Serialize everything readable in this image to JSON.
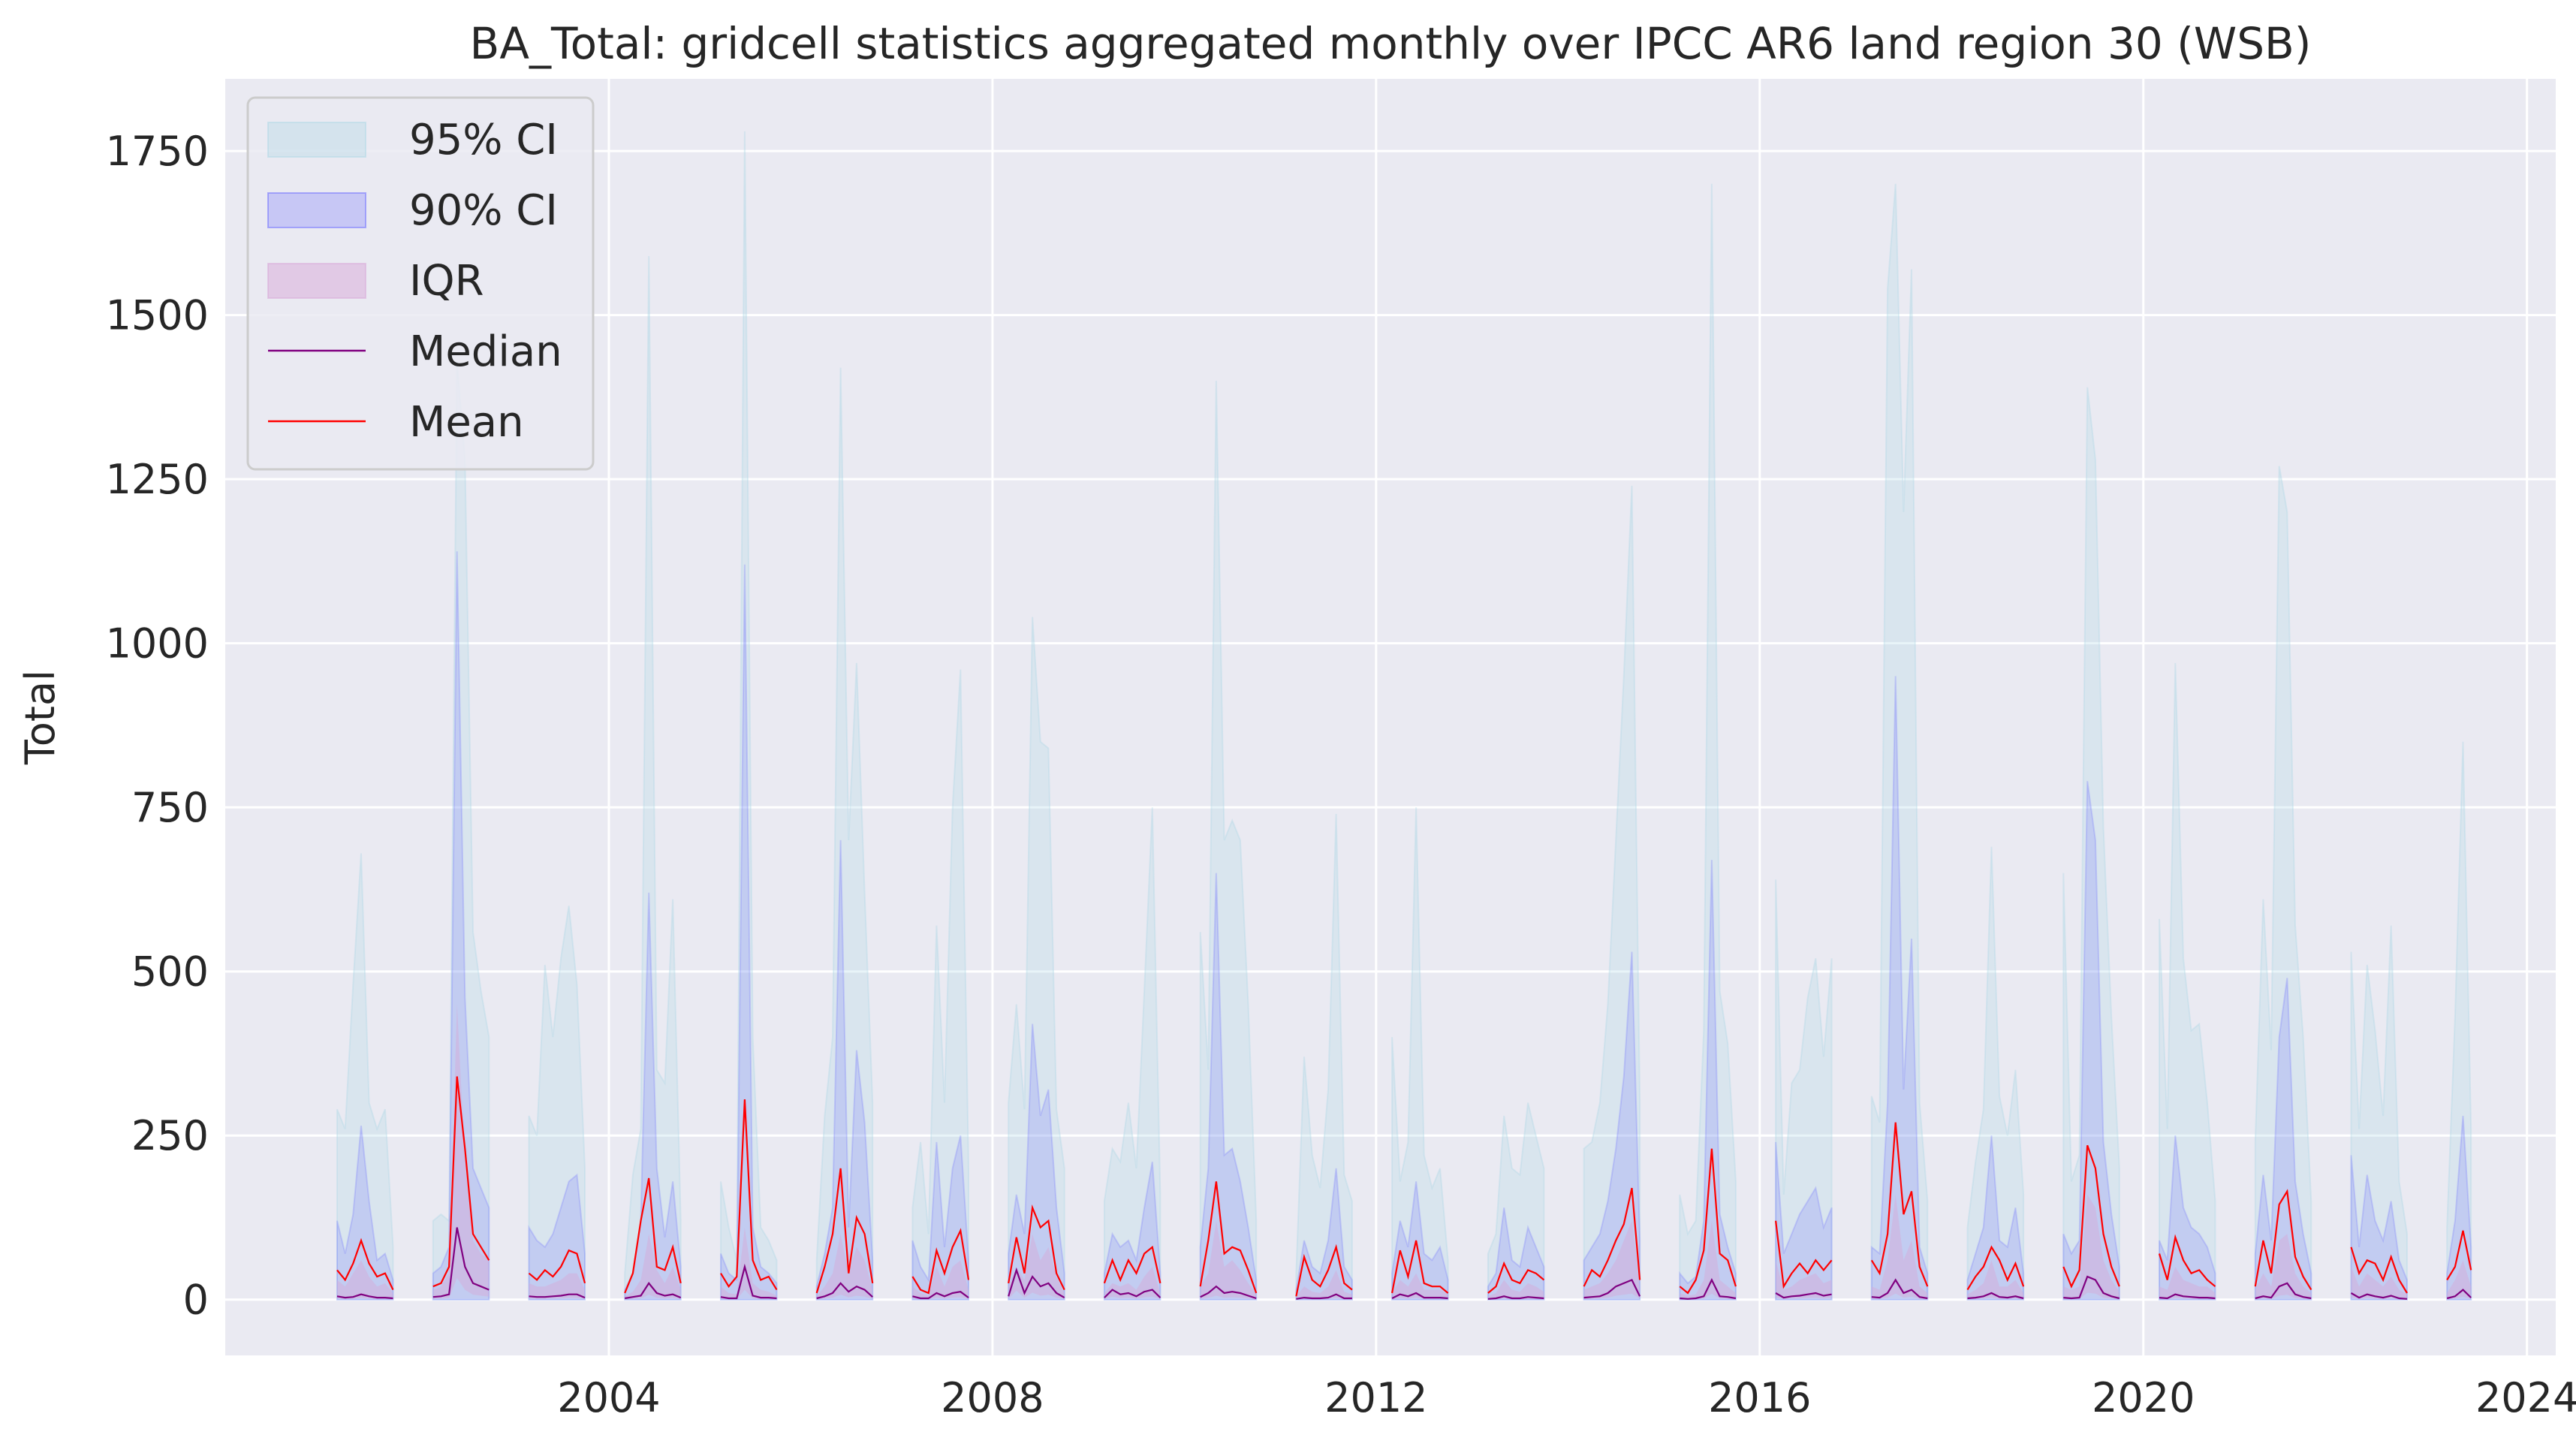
{
  "chart_data": {
    "type": "area",
    "title": "BA_Total: gridcell statistics aggregated monthly over IPCC AR6 land region 30 (WSB)",
    "xlabel": "",
    "ylabel": "Total",
    "xlim": [
      2000.0,
      2024.3
    ],
    "ylim": [
      -85,
      1860
    ],
    "xticks": [
      2004,
      2008,
      2012,
      2016,
      2020,
      2024
    ],
    "xtick_labels": [
      "2004",
      "2008",
      "2012",
      "2016",
      "2020",
      "2024"
    ],
    "yticks": [
      0,
      250,
      500,
      750,
      1000,
      1250,
      1500,
      1750
    ],
    "ytick_labels": [
      "0",
      "250",
      "500",
      "750",
      "1000",
      "1250",
      "1500",
      "1750"
    ],
    "grid": true,
    "legend_position": "upper-left",
    "legend": [
      "95% CI",
      "90% CI",
      "IQR",
      "Median",
      "Mean"
    ],
    "colors": {
      "background": "#eaeaf2",
      "grid": "#ffffff",
      "ci95": "#add8e6",
      "ci90": "#6a6aff",
      "iqr": "#d8a8d8",
      "median": "#800080",
      "mean": "#ff0000"
    },
    "season_start_month": 3,
    "series": [
      {
        "year": 2001,
        "ci95": [
          290,
          260,
          480,
          680,
          300,
          260,
          290,
          80
        ],
        "ci90": [
          120,
          70,
          130,
          265,
          150,
          60,
          70,
          30
        ],
        "iqr_hi": [
          30,
          20,
          40,
          60,
          35,
          20,
          25,
          10
        ],
        "median": [
          5,
          3,
          4,
          8,
          5,
          3,
          3,
          2
        ],
        "mean": [
          45,
          30,
          55,
          90,
          55,
          35,
          40,
          15
        ]
      },
      {
        "year": 2002,
        "ci95": [
          120,
          130,
          120,
          1430,
          1280,
          560,
          470,
          400
        ],
        "ci90": [
          40,
          50,
          80,
          1140,
          460,
          200,
          170,
          140
        ],
        "iqr_hi": [
          15,
          20,
          40,
          450,
          210,
          90,
          70,
          60
        ],
        "median": [
          4,
          5,
          8,
          110,
          50,
          25,
          20,
          15
        ],
        "mean": [
          20,
          25,
          50,
          340,
          230,
          100,
          80,
          60
        ]
      },
      {
        "year": 2003,
        "ci95": [
          280,
          250,
          510,
          400,
          520,
          600,
          480,
          200
        ],
        "ci90": [
          110,
          90,
          80,
          100,
          140,
          180,
          190,
          70
        ],
        "iqr_hi": [
          25,
          20,
          20,
          25,
          30,
          40,
          40,
          15
        ],
        "median": [
          5,
          4,
          4,
          5,
          6,
          8,
          8,
          3
        ],
        "mean": [
          40,
          30,
          45,
          35,
          50,
          75,
          70,
          25
        ]
      },
      {
        "year": 2004,
        "ci95": [
          40,
          190,
          260,
          1590,
          350,
          330,
          610,
          120
        ],
        "ci90": [
          15,
          40,
          120,
          620,
          200,
          95,
          180,
          50
        ],
        "iqr_hi": [
          5,
          12,
          30,
          100,
          45,
          25,
          50,
          15
        ],
        "median": [
          2,
          4,
          6,
          25,
          10,
          6,
          8,
          3
        ],
        "mean": [
          10,
          40,
          120,
          185,
          50,
          45,
          80,
          25
        ]
      },
      {
        "year": 2005,
        "ci95": [
          180,
          110,
          60,
          1780,
          400,
          110,
          90,
          60
        ],
        "ci90": [
          70,
          40,
          30,
          1120,
          110,
          50,
          40,
          25
        ],
        "iqr_hi": [
          20,
          10,
          8,
          110,
          25,
          15,
          12,
          6
        ],
        "median": [
          4,
          2,
          2,
          50,
          6,
          3,
          3,
          2
        ],
        "mean": [
          40,
          20,
          35,
          305,
          60,
          30,
          35,
          15
        ]
      },
      {
        "year": 2006,
        "ci95": [
          60,
          280,
          400,
          1420,
          700,
          970,
          620,
          300
        ],
        "ci90": [
          20,
          70,
          140,
          700,
          110,
          380,
          270,
          60
        ],
        "iqr_hi": [
          5,
          20,
          40,
          100,
          40,
          80,
          60,
          15
        ],
        "median": [
          2,
          5,
          10,
          25,
          12,
          20,
          15,
          4
        ],
        "mean": [
          10,
          50,
          100,
          200,
          40,
          125,
          100,
          25
        ]
      },
      {
        "year": 2007,
        "ci95": [
          140,
          240,
          100,
          570,
          300,
          750,
          960,
          200
        ],
        "ci90": [
          90,
          50,
          30,
          240,
          80,
          200,
          250,
          60
        ],
        "iqr_hi": [
          20,
          10,
          6,
          50,
          20,
          50,
          60,
          15
        ],
        "median": [
          5,
          2,
          2,
          10,
          5,
          10,
          12,
          3
        ],
        "mean": [
          35,
          15,
          10,
          75,
          40,
          80,
          105,
          30
        ]
      },
      {
        "year": 2008,
        "ci95": [
          300,
          450,
          290,
          1040,
          850,
          840,
          290,
          200
        ],
        "ci90": [
          70,
          160,
          100,
          420,
          280,
          320,
          140,
          40
        ],
        "iqr_hi": [
          20,
          50,
          30,
          100,
          60,
          80,
          35,
          10
        ],
        "median": [
          5,
          45,
          10,
          35,
          20,
          25,
          10,
          3
        ],
        "mean": [
          25,
          95,
          40,
          140,
          110,
          120,
          40,
          15
        ]
      },
      {
        "year": 2009,
        "ci95": [
          150,
          230,
          210,
          300,
          200,
          470,
          750,
          160
        ],
        "ci90": [
          40,
          100,
          80,
          90,
          60,
          140,
          210,
          40
        ],
        "iqr_hi": [
          10,
          25,
          20,
          25,
          15,
          35,
          50,
          10
        ],
        "median": [
          3,
          15,
          8,
          10,
          5,
          12,
          15,
          3
        ],
        "mean": [
          25,
          60,
          30,
          60,
          40,
          70,
          80,
          25
        ]
      },
      {
        "year": 2010,
        "ci95": [
          560,
          350,
          1400,
          700,
          730,
          700,
          450,
          120
        ],
        "ci90": [
          80,
          200,
          650,
          220,
          230,
          180,
          110,
          30
        ],
        "iqr_hi": [
          20,
          40,
          120,
          50,
          60,
          45,
          25,
          8
        ],
        "median": [
          4,
          10,
          20,
          10,
          12,
          10,
          6,
          2
        ],
        "mean": [
          20,
          90,
          180,
          70,
          80,
          75,
          45,
          10
        ]
      },
      {
        "year": 2011,
        "ci95": [
          40,
          370,
          220,
          170,
          320,
          740,
          190,
          150
        ],
        "ci90": [
          15,
          90,
          50,
          40,
          90,
          200,
          50,
          30
        ],
        "iqr_hi": [
          5,
          20,
          12,
          10,
          20,
          45,
          12,
          8
        ],
        "median": [
          1,
          3,
          2,
          2,
          3,
          8,
          2,
          2
        ],
        "mean": [
          5,
          65,
          30,
          20,
          45,
          80,
          25,
          15
        ]
      },
      {
        "year": 2012,
        "ci95": [
          400,
          180,
          240,
          750,
          220,
          170,
          200,
          60
        ],
        "ci90": [
          40,
          120,
          80,
          180,
          70,
          60,
          80,
          30
        ],
        "iqr_hi": [
          10,
          30,
          20,
          40,
          15,
          15,
          15,
          8
        ],
        "median": [
          2,
          8,
          5,
          10,
          3,
          3,
          3,
          2
        ],
        "mean": [
          10,
          75,
          35,
          90,
          25,
          20,
          20,
          10
        ]
      },
      {
        "year": 2013,
        "ci95": [
          70,
          100,
          280,
          200,
          190,
          300,
          250,
          200
        ],
        "ci90": [
          20,
          40,
          140,
          60,
          50,
          110,
          80,
          50
        ],
        "iqr_hi": [
          5,
          10,
          30,
          15,
          12,
          25,
          20,
          12
        ],
        "median": [
          1,
          2,
          5,
          2,
          2,
          4,
          3,
          2
        ],
        "mean": [
          10,
          20,
          55,
          30,
          25,
          45,
          40,
          30
        ]
      },
      {
        "year": 2014,
        "ci95": [
          230,
          240,
          300,
          450,
          700,
          950,
          1240,
          300
        ],
        "ci90": [
          60,
          80,
          100,
          150,
          230,
          340,
          530,
          90
        ],
        "iqr_hi": [
          15,
          20,
          25,
          40,
          60,
          90,
          120,
          20
        ],
        "median": [
          3,
          4,
          5,
          10,
          20,
          25,
          30,
          5
        ],
        "mean": [
          20,
          45,
          35,
          60,
          90,
          115,
          170,
          30
        ]
      },
      {
        "year": 2015,
        "ci95": [
          160,
          100,
          120,
          410,
          1700,
          470,
          390,
          180
        ],
        "ci90": [
          40,
          25,
          35,
          120,
          670,
          130,
          80,
          40
        ],
        "iqr_hi": [
          10,
          6,
          8,
          30,
          120,
          30,
          20,
          10
        ],
        "median": [
          2,
          1,
          2,
          5,
          30,
          5,
          4,
          2
        ],
        "mean": [
          20,
          10,
          30,
          75,
          230,
          70,
          60,
          20
        ]
      },
      {
        "year": 2016,
        "ci95": [
          640,
          160,
          330,
          350,
          460,
          520,
          370,
          520
        ],
        "ci90": [
          240,
          70,
          100,
          130,
          150,
          170,
          110,
          140
        ],
        "iqr_hi": [
          60,
          15,
          20,
          30,
          35,
          40,
          25,
          30
        ],
        "median": [
          10,
          3,
          5,
          6,
          8,
          10,
          6,
          8
        ],
        "mean": [
          120,
          20,
          40,
          55,
          40,
          60,
          45,
          60
        ]
      },
      {
        "year": 2017,
        "ci95": [
          310,
          270,
          1540,
          1700,
          1200,
          1570,
          300,
          150
        ],
        "ci90": [
          80,
          70,
          300,
          950,
          320,
          550,
          80,
          40
        ],
        "iqr_hi": [
          20,
          15,
          60,
          160,
          60,
          90,
          20,
          10
        ],
        "median": [
          4,
          3,
          10,
          30,
          10,
          15,
          4,
          2
        ],
        "mean": [
          60,
          40,
          100,
          270,
          130,
          165,
          50,
          20
        ]
      },
      {
        "year": 2018,
        "ci95": [
          110,
          210,
          290,
          690,
          310,
          250,
          350,
          160
        ],
        "ci90": [
          30,
          70,
          110,
          250,
          90,
          80,
          140,
          40
        ],
        "iqr_hi": [
          8,
          15,
          25,
          60,
          20,
          20,
          30,
          10
        ],
        "median": [
          2,
          3,
          5,
          10,
          4,
          3,
          5,
          2
        ],
        "mean": [
          15,
          35,
          50,
          80,
          60,
          30,
          55,
          20
        ]
      },
      {
        "year": 2019,
        "ci95": [
          650,
          180,
          220,
          1390,
          1280,
          720,
          430,
          200
        ],
        "ci90": [
          100,
          70,
          90,
          790,
          700,
          240,
          130,
          50
        ],
        "iqr_hi": [
          20,
          15,
          20,
          160,
          140,
          60,
          30,
          12
        ],
        "median": [
          3,
          2,
          3,
          35,
          30,
          10,
          5,
          2
        ],
        "mean": [
          50,
          20,
          45,
          235,
          200,
          100,
          50,
          20
        ]
      },
      {
        "year": 2020,
        "ci95": [
          580,
          260,
          970,
          520,
          410,
          420,
          300,
          150
        ],
        "ci90": [
          90,
          60,
          250,
          140,
          110,
          100,
          80,
          40
        ],
        "iqr_hi": [
          20,
          15,
          50,
          30,
          25,
          20,
          20,
          10
        ],
        "median": [
          3,
          2,
          8,
          5,
          4,
          3,
          3,
          2
        ],
        "mean": [
          70,
          30,
          95,
          60,
          40,
          45,
          30,
          20
        ]
      },
      {
        "year": 2021,
        "ci95": [
          240,
          610,
          380,
          1270,
          1200,
          570,
          400,
          150
        ],
        "ci90": [
          70,
          190,
          90,
          400,
          490,
          180,
          100,
          40
        ],
        "iqr_hi": [
          15,
          40,
          20,
          90,
          100,
          40,
          20,
          10
        ],
        "median": [
          2,
          5,
          3,
          20,
          25,
          8,
          4,
          2
        ],
        "mean": [
          20,
          90,
          40,
          145,
          165,
          65,
          35,
          15
        ]
      },
      {
        "year": 2022,
        "ci95": [
          530,
          260,
          510,
          410,
          280,
          570,
          180,
          100
        ],
        "ci90": [
          220,
          80,
          190,
          120,
          90,
          150,
          60,
          30
        ],
        "iqr_hi": [
          50,
          20,
          40,
          30,
          20,
          35,
          15,
          8
        ],
        "median": [
          10,
          3,
          8,
          5,
          3,
          6,
          2,
          1
        ],
        "mean": [
          80,
          40,
          60,
          55,
          30,
          65,
          30,
          10
        ]
      },
      {
        "year": 2023,
        "ci95": [
          110,
          430,
          850,
          260
        ],
        "ci90": [
          40,
          120,
          280,
          80
        ],
        "iqr_hi": [
          10,
          30,
          60,
          20
        ],
        "median": [
          2,
          5,
          15,
          3
        ],
        "mean": [
          30,
          50,
          105,
          45
        ]
      }
    ]
  }
}
